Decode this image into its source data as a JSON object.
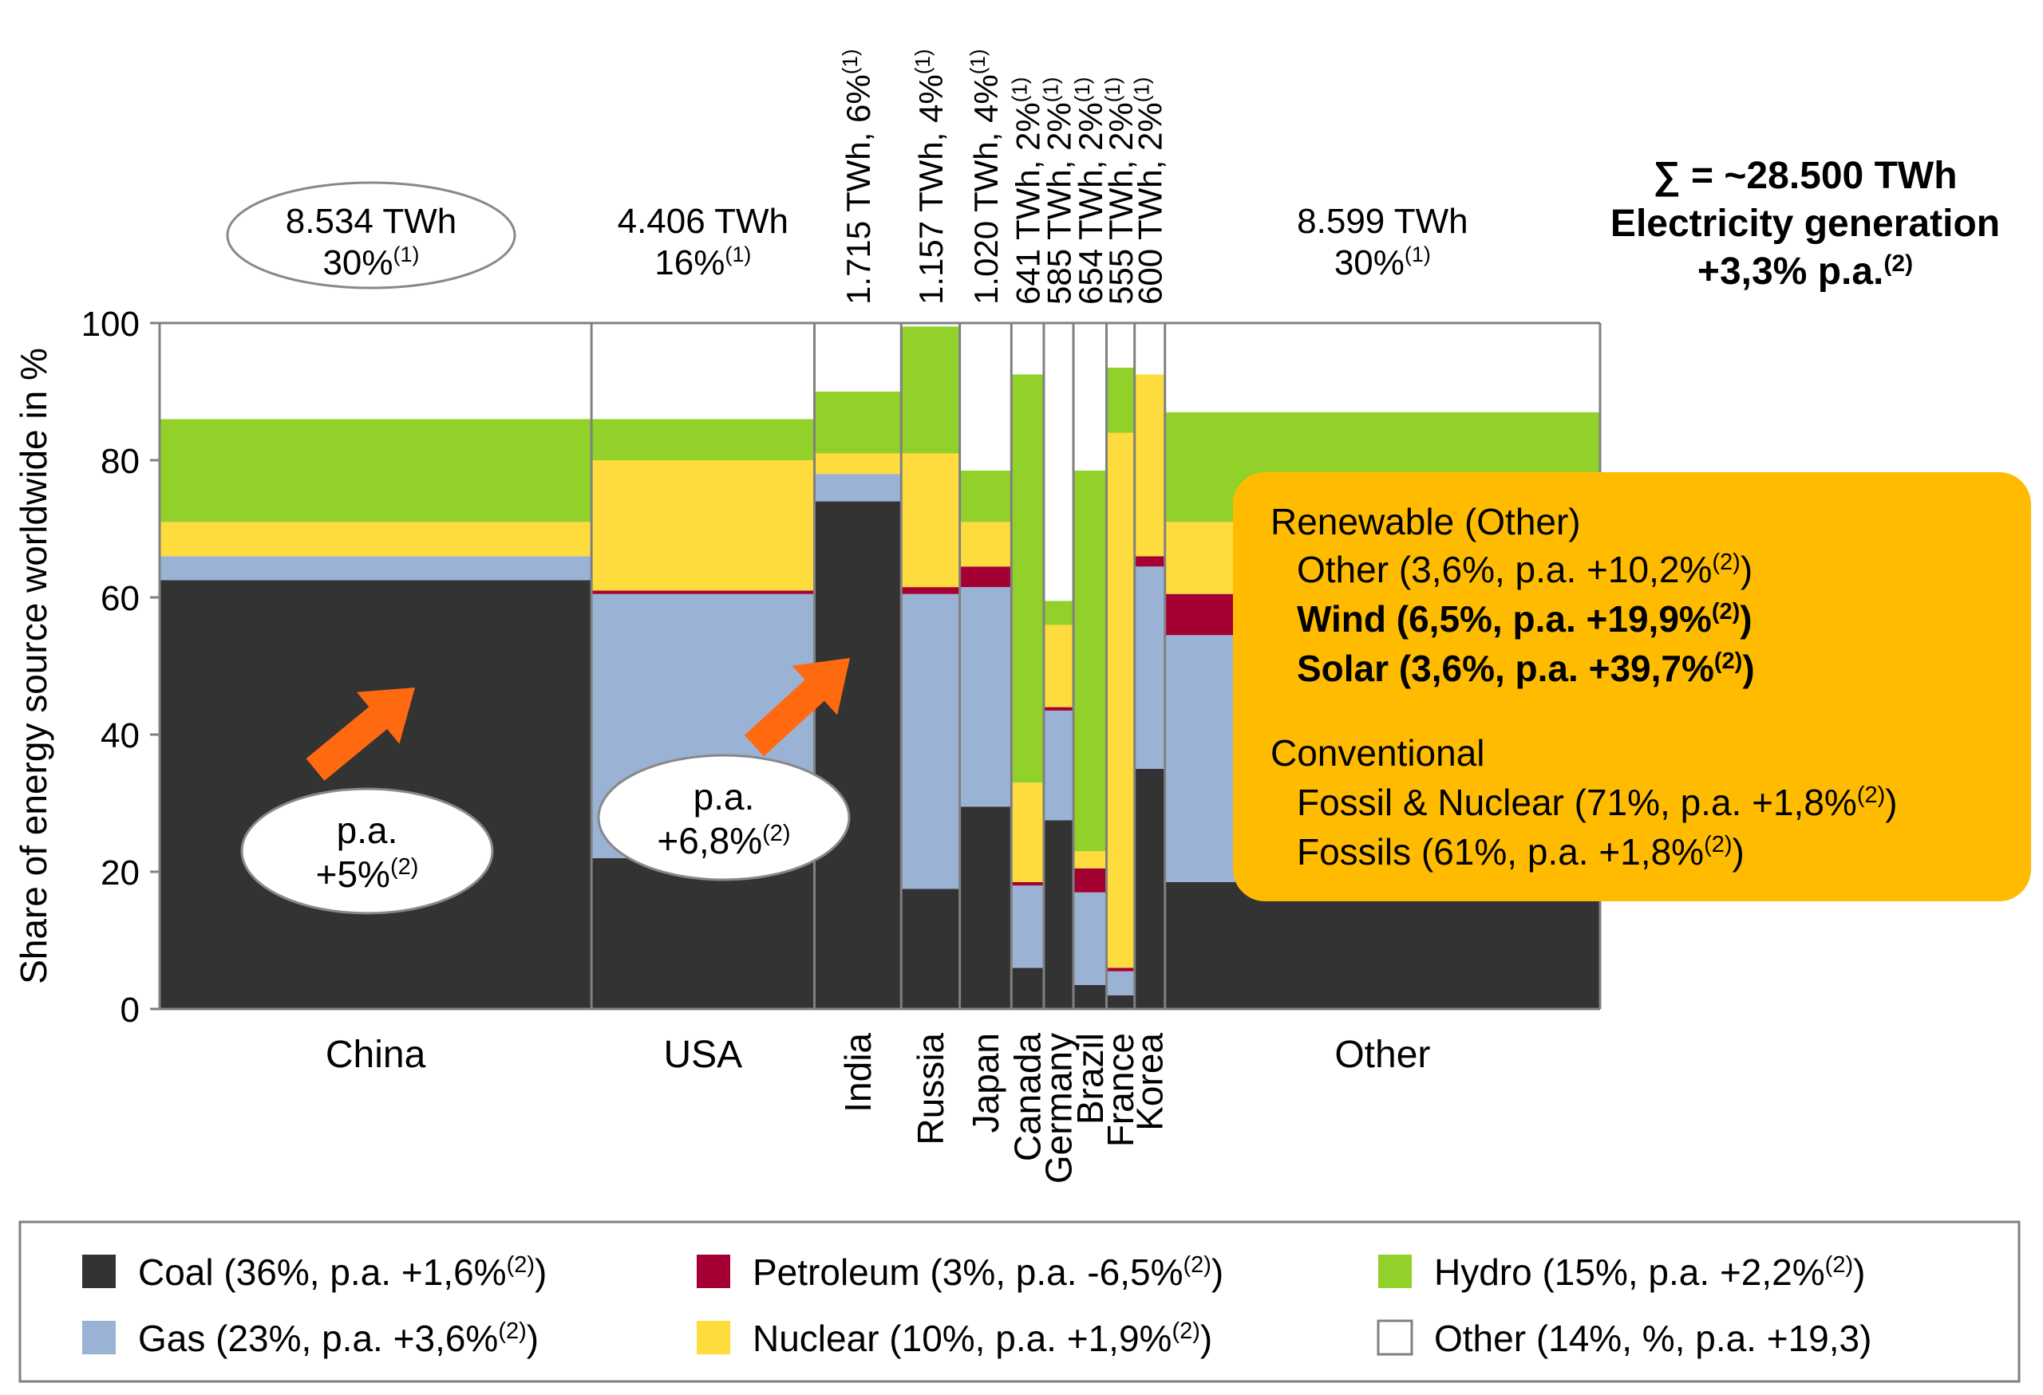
{
  "chart_data": {
    "type": "marimekko",
    "ylabel": "Share of energy source worldwide in %",
    "ylim": [
      0,
      100
    ],
    "y_ticks": [
      "0",
      "20",
      "40",
      "60",
      "80",
      "100"
    ],
    "series_colors": {
      "coal": "#333333",
      "gas": "#9ab3d5",
      "petroleum": "#a50034",
      "nuclear": "#fedc3d",
      "hydro": "#92d02a",
      "other": "#ffffff"
    },
    "countries": [
      {
        "name": "China",
        "twh": 8534,
        "stack": {
          "coal": 62.5,
          "gas": 3.5,
          "petroleum": 0,
          "nuclear": 5,
          "hydro": 15,
          "other": 14
        }
      },
      {
        "name": "USA",
        "twh": 4406,
        "stack": {
          "coal": 22,
          "gas": 38.5,
          "petroleum": 0.5,
          "nuclear": 19,
          "hydro": 6,
          "other": 14
        }
      },
      {
        "name": "India",
        "twh": 1715,
        "stack": {
          "coal": 74,
          "gas": 4,
          "petroleum": 0,
          "nuclear": 3,
          "hydro": 9,
          "other": 10
        }
      },
      {
        "name": "Russia",
        "twh": 1157,
        "stack": {
          "coal": 17.5,
          "gas": 43,
          "petroleum": 1,
          "nuclear": 19.5,
          "hydro": 18.5,
          "other": 0.5
        }
      },
      {
        "name": "Japan",
        "twh": 1020,
        "stack": {
          "coal": 29.5,
          "gas": 32,
          "petroleum": 3,
          "nuclear": 6.5,
          "hydro": 7.5,
          "other": 21.5
        }
      },
      {
        "name": "Canada",
        "twh": 641,
        "stack": {
          "coal": 6,
          "gas": 12,
          "petroleum": 0.5,
          "nuclear": 14.5,
          "hydro": 59.5,
          "other": 7.5
        }
      },
      {
        "name": "Germany",
        "twh": 585,
        "stack": {
          "coal": 27.5,
          "gas": 16,
          "petroleum": 0.5,
          "nuclear": 12,
          "hydro": 3.5,
          "other": 40.5
        }
      },
      {
        "name": "Brazil",
        "twh": 654,
        "stack": {
          "coal": 3.5,
          "gas": 13.5,
          "petroleum": 3.5,
          "nuclear": 2.5,
          "hydro": 55.5,
          "other": 21.5
        }
      },
      {
        "name": "France",
        "twh": 555,
        "stack": {
          "coal": 2,
          "gas": 3.5,
          "petroleum": 0.5,
          "nuclear": 78,
          "hydro": 9.5,
          "other": 6.5
        }
      },
      {
        "name": "Korea",
        "twh": 600,
        "stack": {
          "coal": 35,
          "gas": 29.5,
          "petroleum": 1.5,
          "nuclear": 26.5,
          "hydro": 0,
          "other": 7.5
        }
      },
      {
        "name": "Other",
        "twh": 8599,
        "stack": {
          "coal": 18.5,
          "gas": 36,
          "petroleum": 6,
          "nuclear": 10.5,
          "hydro": 16,
          "other": 13
        }
      }
    ],
    "top_labels": {
      "China": {
        "twh": "8.534 TWh",
        "share": "30%",
        "note": "(1)"
      },
      "USA": {
        "twh": "4.406 TWh",
        "share": "16%",
        "note": "(1)"
      },
      "Other": {
        "twh": "8.599 TWh",
        "share": "30%",
        "note": "(1)"
      }
    },
    "vertical_top_labels": {
      "India": {
        "text": "1.715 TWh, 6%",
        "note": "(1)"
      },
      "Russia": {
        "text": "1.157 TWh, 4%",
        "note": "(1)"
      },
      "Japan": {
        "text": "1.020 TWh, 4%",
        "note": "(1)"
      },
      "Canada": {
        "text": "641 TWh, 2%",
        "note": "(1)"
      },
      "Germany": {
        "text": "585 TWh, 2%",
        "note": "(1)"
      },
      "Brazil": {
        "text": "654 TWh, 2%",
        "note": "(1)"
      },
      "France": {
        "text": "555 TWh, 2%",
        "note": "(1)"
      },
      "Korea": {
        "text": "600 TWh, 2%",
        "note": "(1)"
      }
    },
    "total": {
      "line1": "∑ = ~28.500 TWh",
      "line2": "Electricity generation",
      "line3": "+3,3% p.a.",
      "note": "(2)"
    },
    "growth_bubbles": [
      {
        "country": "China",
        "line1": "p.a.",
        "line2": "+5%",
        "note": "(2)"
      },
      {
        "country": "USA",
        "line1": "p.a.",
        "line2": "+6,8%",
        "note": "(2)"
      }
    ],
    "info_box": {
      "color": "#ffbb00",
      "heading1": "Renewable (Other)",
      "items1": [
        {
          "text": "Other (3,6%, p.a. +10,2%",
          "note": "(2)",
          "close": ")",
          "bold": false
        },
        {
          "text": "Wind (6,5%, p.a. +19,9%",
          "note": "(2)",
          "close": ")",
          "bold": true
        },
        {
          "text": "Solar (3,6%, p.a. +39,7%",
          "note": "(2)",
          "close": ")",
          "bold": true
        }
      ],
      "heading2": "Conventional",
      "items2": [
        {
          "text": "Fossil & Nuclear (71%, p.a. +1,8%",
          "note": "(2)",
          "close": ")",
          "bold": false
        },
        {
          "text": "Fossils (61%, p.a. +1,8%",
          "note": "(2)",
          "close": ")",
          "bold": false
        }
      ]
    },
    "legend": [
      {
        "key": "coal",
        "text": "Coal (36%, p.a. +1,6%",
        "note": "(2)",
        "close": ")"
      },
      {
        "key": "petroleum",
        "text": "Petroleum (3%, p.a. -6,5%",
        "note": "(2)",
        "close": ")"
      },
      {
        "key": "hydro",
        "text": "Hydro (15%, p.a. +2,2%",
        "note": "(2)",
        "close": ")"
      },
      {
        "key": "gas",
        "text": "Gas (23%, p.a. +3,6%",
        "note": "(2)",
        "close": ")"
      },
      {
        "key": "nuclear",
        "text": "Nuclear (10%, p.a. +1,9%",
        "note": "(2)",
        "close": ")"
      },
      {
        "key": "other",
        "text": "Other (14%, %, p.a. +19,3)",
        "note": "",
        "close": ""
      }
    ]
  }
}
